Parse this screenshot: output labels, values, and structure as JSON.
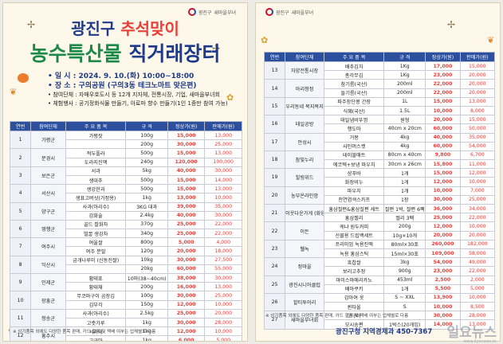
{
  "panel1": {
    "logo": "광진구",
    "logo_sub": "새마을부녀",
    "title_pre": "광진구 ",
    "title_hl": "추석맞이",
    "subtitle_hl": "농수특산물",
    "subtitle_rest": " 직거래장터",
    "date_label": "일    시 : ",
    "date": "2024. 9. 10.(화) 10:00~18:00",
    "place_label": "장    소 : ",
    "place": "구의공원 (구의3동 테크노마트 맞은편)",
    "participants": "참여단체 : 자매우호도시 등 12개 지자체, 전통시장, 기업, 새마을부녀회",
    "experience": "체험행사 : 공기정화식물 만들기, 아로마 향수 만들기(1인 1종만 참여 가능)",
    "headers": [
      "연번",
      "참여단체",
      "주 요 품 목",
      "규    격",
      "정상가(원)",
      "판매가(원)"
    ],
    "rows": [
      {
        "no": "1",
        "org": "가평군",
        "item": "가평잣",
        "spec": "100g",
        "price": "15,000",
        "sale": "13,000"
      },
      {
        "no": "",
        "org": "",
        "item": "",
        "spec": "200g",
        "price": "30,000",
        "sale": "25,000"
      },
      {
        "no": "2",
        "org": "문경시",
        "item": "적두플라",
        "spec": "500g",
        "price": "15,000",
        "sale": "13,000"
      },
      {
        "no": "",
        "org": "",
        "item": "도라지진액",
        "spec": "240g",
        "price": "120,000",
        "sale": "100,000"
      },
      {
        "no": "3",
        "org": "보은군",
        "item": "서과",
        "spec": "5kg",
        "price": "40,000",
        "sale": "30,000"
      },
      {
        "no": "",
        "org": "",
        "item": "생대추",
        "spec": "500g",
        "price": "15,000",
        "sale": "14,000"
      },
      {
        "no": "4",
        "org": "서산시",
        "item": "생강한과",
        "spec": "500g",
        "price": "15,000",
        "sale": "13,000"
      },
      {
        "no": "",
        "org": "",
        "item": "생표고버섯(가정용)",
        "spec": "1kg",
        "price": "13,000",
        "sale": "10,000"
      },
      {
        "no": "5",
        "org": "양구군",
        "item": "사과(아리수)",
        "spec": "3KG 대과",
        "price": "39,000",
        "sale": "35,000"
      },
      {
        "no": "",
        "org": "",
        "item": "감화술",
        "spec": "2.4kg",
        "price": "40,000",
        "sale": "30,000"
      },
      {
        "no": "6",
        "org": "영행군",
        "item": "골드 찰화차",
        "spec": "370g",
        "price": "25,000",
        "sale": "22,000"
      },
      {
        "no": "",
        "org": "",
        "item": "벌꿀 생강차",
        "spec": "340g",
        "price": "25,000",
        "sale": "22,000"
      },
      {
        "no": "7",
        "org": "여주시",
        "item": "여울쌀",
        "spec": "800g",
        "price": "5,000",
        "sale": "4,000"
      },
      {
        "no": "",
        "org": "",
        "item": "여주 분말",
        "spec": "120g",
        "price": "20,000",
        "sale": "18,000"
      },
      {
        "no": "8",
        "org": "익산시",
        "item": "금개나루미 (신동진쌀)",
        "spec": "10kg",
        "price": "30,000",
        "sale": "27,500"
      },
      {
        "no": "",
        "org": "",
        "item": "",
        "spec": "20kg",
        "price": "60,000",
        "sale": "55,000"
      },
      {
        "no": "9",
        "org": "인제군",
        "item": "황태포",
        "spec": "10마(38~40cm)",
        "price": "38,000",
        "sale": "30,000"
      },
      {
        "no": "",
        "org": "",
        "item": "황태채",
        "spec": "200g",
        "price": "16,000",
        "sale": "13,000"
      },
      {
        "no": "10",
        "org": "장흥군",
        "item": "무코마구이 곰장김",
        "spec": "100g",
        "price": "30,000",
        "sale": "25,000"
      },
      {
        "no": "",
        "org": "",
        "item": "김부각",
        "spec": "150g",
        "price": "12,000",
        "sale": "10,000"
      },
      {
        "no": "11",
        "org": "청송군",
        "item": "사과(아리수)",
        "spec": "2.5kg",
        "price": "25,000",
        "sale": "20,000"
      },
      {
        "no": "",
        "org": "",
        "item": "고춧가루",
        "spec": "1kg",
        "price": "30,000",
        "sale": "28,000"
      },
      {
        "no": "12",
        "org": "홍주시",
        "item": "서리태",
        "spec": "1kg",
        "price": "12,000",
        "sale": "10,000"
      },
      {
        "no": "",
        "org": "",
        "item": "고구마",
        "spec": "1kg",
        "price": "6,000",
        "sale": "5,000"
      }
    ],
    "note": "※ 상기품목 외에도 다양한 품목 판매, 카드 결제 및 택배 여부는 업체별로 다름"
  },
  "panel2": {
    "logo": "광진구",
    "logo_sub": "새마을부녀",
    "headers": [
      "연번",
      "참여단체",
      "주 요 품 목",
      "규    격",
      "정상가(원)",
      "판매가(원)"
    ],
    "rows": [
      {
        "no": "13",
        "org": "자양전통시장",
        "item": "배추김치",
        "spec": "1Kg",
        "price": "17,000",
        "sale": "15,000"
      },
      {
        "no": "",
        "org": "",
        "item": "총각무김",
        "spec": "1Kg",
        "price": "23,000",
        "sale": "20,000"
      },
      {
        "no": "14",
        "org": "아리청정",
        "item": "참기름(국산)",
        "spec": "200ml",
        "price": "22,000",
        "sale": "20,000"
      },
      {
        "no": "",
        "org": "",
        "item": "들기름(국산)",
        "spec": "200ml",
        "price": "22,000",
        "sale": "20,000"
      },
      {
        "no": "15",
        "org": "우리동네 복지복지",
        "item": "파주장단콩 간장",
        "spec": "1L",
        "price": "15,000",
        "sale": "13,000"
      },
      {
        "no": "",
        "org": "",
        "item": "식혜(국산)",
        "spec": "1.5L",
        "price": "10,000",
        "sale": "8,000"
      },
      {
        "no": "16",
        "org": "태일공방",
        "item": "태일냄비뚜껑",
        "spec": "원형",
        "price": "20,000",
        "sale": "15,000"
      },
      {
        "no": "",
        "org": "",
        "item": "행도마",
        "spec": "40cm x 20cm",
        "price": "60,000",
        "sale": "50,000"
      },
      {
        "no": "17",
        "org": "안성시",
        "item": "거봉",
        "spec": "4kg",
        "price": "40,000",
        "sale": "35,000"
      },
      {
        "no": "",
        "org": "",
        "item": "샤인머스켓",
        "spec": "4kg",
        "price": "60,000",
        "sale": "54,000"
      },
      {
        "no": "18",
        "org": "참빛누리",
        "item": "테이블매트",
        "spec": "80cm x 40cm",
        "price": "9,800",
        "sale": "6,700"
      },
      {
        "no": "",
        "org": "",
        "item": "에코텍+보냉 파우치",
        "spec": "30cm x 26cm",
        "price": "15,800",
        "sale": "11,000"
      },
      {
        "no": "19",
        "org": "힐링위드",
        "item": "샴푸바",
        "spec": "1개",
        "price": "15,000",
        "sale": "12,000"
      },
      {
        "no": "",
        "org": "",
        "item": "화장비누",
        "spec": "1개",
        "price": "12,000",
        "sale": "10,000"
      },
      {
        "no": "20",
        "org": "농부온라인팜",
        "item": "파우치",
        "spec": "1개",
        "price": "10,000",
        "sale": "7,000"
      },
      {
        "no": "",
        "org": "",
        "item": "천연염색스카프",
        "spec": "1장",
        "price": "30,000",
        "sale": "25,000"
      },
      {
        "no": "21",
        "org": "이웃다운가게 (화양점)",
        "item": "홍삼절편&홍삼절편 세트",
        "spec": "절편 1박, 절편 6팩",
        "price": "36,000",
        "sale": "34,000"
      },
      {
        "no": "",
        "org": "",
        "item": "홍삼젤리",
        "spec": "젤리 3팩",
        "price": "25,000",
        "sale": "22,000"
      },
      {
        "no": "22",
        "org": "이든",
        "item": "케냐 원두커피",
        "spec": "200g",
        "price": "12,000",
        "sale": "10,000"
      },
      {
        "no": "",
        "org": "",
        "item": "선물용 드립백세트",
        "spec": "10g×10개",
        "price": "20,000",
        "sale": "20,000"
      },
      {
        "no": "23",
        "org": "웰녹",
        "item": "프리미엄 녹용진액",
        "spec": "80ml×30포",
        "price": "260,000",
        "sale": "182,000"
      },
      {
        "no": "",
        "org": "",
        "item": "녹용 홍삼스틱",
        "spec": "15ml×30포",
        "price": "109,000",
        "sale": "58,000"
      },
      {
        "no": "24",
        "org": "정마을",
        "item": "흑찹쌀",
        "spec": "3kg",
        "price": "54,000",
        "sale": "49,000"
      },
      {
        "no": "",
        "org": "",
        "item": "보리고추장",
        "spec": "900g",
        "price": "23,000",
        "sale": "22,000"
      },
      {
        "no": "25",
        "org": "광진시니어클럽",
        "item": "마미스마메리카노",
        "spec": "453ml",
        "price": "2,500",
        "sale": "2,000"
      },
      {
        "no": "",
        "org": "",
        "item": "배아쿠키",
        "spec": "1개",
        "price": "5,500",
        "sale": "5,000"
      },
      {
        "no": "26",
        "org": "할티투어리",
        "item": "감아여 옷",
        "spec": "S ~ XXL",
        "price": "13,900",
        "sale": "10,000"
      },
      {
        "no": "",
        "org": "",
        "item": "퀸타올",
        "spec": "S",
        "price": "10,000",
        "sale": "8,500"
      },
      {
        "no": "27",
        "org": "새마을부녀회",
        "item": "고구마",
        "spec": "",
        "price": "30,000",
        "sale": "28,000"
      },
      {
        "no": "",
        "org": "",
        "item": "모시송편",
        "spec": "1박스(20개입)",
        "price": "14,000",
        "sale": "13,000"
      }
    ],
    "note": "※ 상기품목 외에도 다양한 품목 판매, 카드 결제 및 택배 여부는 업체별로 다름",
    "footer": "광진구청 지역경제과 450-7367"
  },
  "watermark": "일요뉴스",
  "watermark_sub": "www.ilyonews.kr"
}
